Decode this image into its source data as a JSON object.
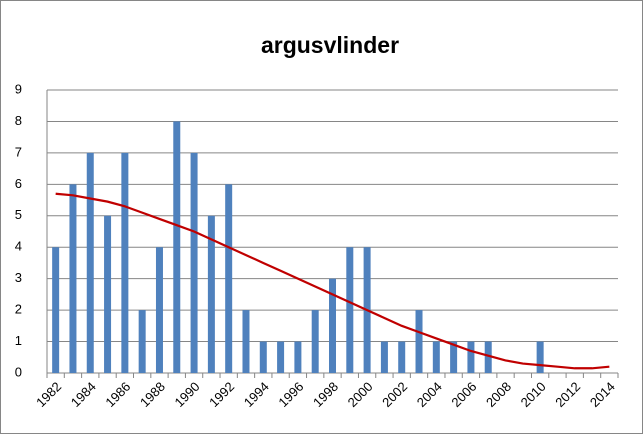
{
  "chart_data": {
    "type": "bar",
    "title": "argusvlinder",
    "categories": [
      "1982",
      null,
      "1984",
      null,
      "1986",
      null,
      "1988",
      null,
      "1990",
      null,
      "1992",
      null,
      "1994",
      null,
      "1996",
      null,
      "1998",
      null,
      "2000",
      null,
      "2002",
      null,
      "2004",
      null,
      "2006",
      null,
      "2008",
      null,
      "2010",
      null,
      "2012",
      null,
      "2014"
    ],
    "values": [
      4,
      6,
      7,
      5,
      7,
      2,
      4,
      8,
      7,
      5,
      6,
      2,
      1,
      1,
      1,
      2,
      3,
      4,
      4,
      1,
      1,
      2,
      1,
      1,
      1,
      1,
      0,
      0,
      1,
      0,
      0,
      0,
      0
    ],
    "color": "#4f81bd",
    "trend": {
      "color": "#c00000",
      "values": [
        5.7,
        5.65,
        5.55,
        5.45,
        5.3,
        5.1,
        4.9,
        4.7,
        4.5,
        4.25,
        4.0,
        3.75,
        3.5,
        3.25,
        3.0,
        2.75,
        2.5,
        2.25,
        2.0,
        1.75,
        1.5,
        1.3,
        1.1,
        0.9,
        0.7,
        0.55,
        0.4,
        0.3,
        0.25,
        0.2,
        0.15,
        0.15,
        0.2
      ]
    },
    "ylim": [
      0,
      9
    ],
    "yticks": [
      0,
      1,
      2,
      3,
      4,
      5,
      6,
      7,
      8,
      9
    ],
    "grid": true
  }
}
